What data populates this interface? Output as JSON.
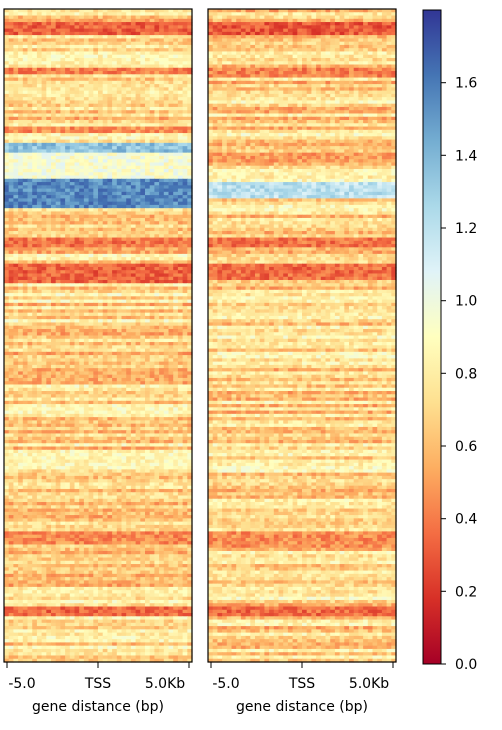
{
  "chart_data": {
    "type": "heatmap",
    "panels": [
      {
        "name": "",
        "xlabel": "gene distance (bp)",
        "xticks": [
          "-5.0",
          "TSS",
          "5.0Kb"
        ],
        "rows": 200,
        "cols": 40,
        "bands": [
          {
            "rows": [
              4,
              8
            ],
            "value": 0.32
          },
          {
            "rows": [
              18,
              20
            ],
            "value": 0.42
          },
          {
            "rows": [
              36,
              38
            ],
            "value": 0.45
          },
          {
            "rows": [
              41,
              44
            ],
            "value": 1.35
          },
          {
            "rows": [
              44,
              55
            ],
            "value": 0.95
          },
          {
            "rows": [
              52,
              61
            ],
            "value": 1.55
          },
          {
            "rows": [
              70,
              73
            ],
            "value": 0.38
          },
          {
            "rows": [
              78,
              84
            ],
            "value": 0.33
          },
          {
            "rows": [
              110,
              113
            ],
            "value": 0.55
          },
          {
            "rows": [
              135,
              140
            ],
            "value": 0.85
          },
          {
            "rows": [
              160,
              164
            ],
            "value": 0.45
          },
          {
            "rows": [
              183,
              186
            ],
            "value": 0.35
          }
        ]
      },
      {
        "name": "",
        "xlabel": "gene distance (bp)",
        "xticks": [
          "-5.0",
          "TSS",
          "5.0Kb"
        ],
        "rows": 200,
        "cols": 40,
        "bands": [
          {
            "rows": [
              4,
              8
            ],
            "value": 0.3
          },
          {
            "rows": [
              18,
              21
            ],
            "value": 0.42
          },
          {
            "rows": [
              44,
              47
            ],
            "value": 0.5
          },
          {
            "rows": [
              53,
              58
            ],
            "value": 1.2
          },
          {
            "rows": [
              70,
              73
            ],
            "value": 0.38
          },
          {
            "rows": [
              78,
              83
            ],
            "value": 0.36
          },
          {
            "rows": [
              160,
              165
            ],
            "value": 0.45
          },
          {
            "rows": [
              183,
              186
            ],
            "value": 0.35
          }
        ]
      }
    ],
    "colorbar": {
      "colormap": "RdYlBu",
      "vmin": 0.0,
      "vmax": 1.8,
      "ticks": [
        "0.0",
        "0.2",
        "0.4",
        "0.6",
        "0.8",
        "1.0",
        "1.2",
        "1.4",
        "1.6"
      ]
    }
  }
}
